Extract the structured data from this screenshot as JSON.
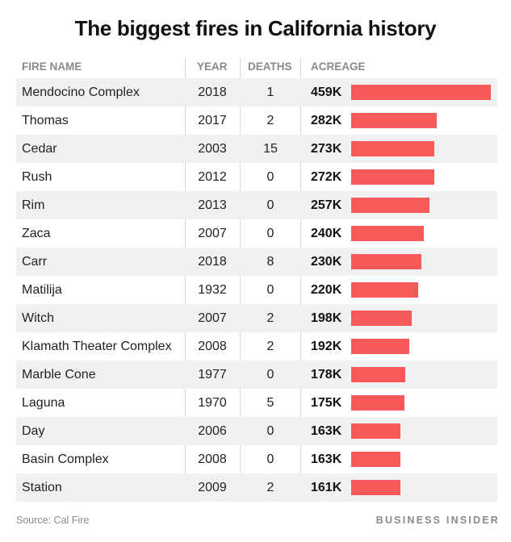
{
  "header": {
    "title": "The biggest fires in California history",
    "col_name": "FIRE NAME",
    "col_year": "YEAR",
    "col_deaths": "DEATHS",
    "col_acreage": "ACREAGE"
  },
  "footer": {
    "source": "Source: Cal Fire",
    "brand": "BUSINESS INSIDER"
  },
  "chart_data": {
    "type": "table",
    "title": "The biggest fires in California history",
    "columns": [
      "FIRE NAME",
      "YEAR",
      "DEATHS",
      "ACREAGE"
    ],
    "bar_color": "#f65a5a",
    "bar_max_value": 459,
    "rows": [
      {
        "name": "Mendocino Complex",
        "year": "2018",
        "deaths": "1",
        "acreage_label": "459K",
        "acreage": 459
      },
      {
        "name": "Thomas",
        "year": "2017",
        "deaths": "2",
        "acreage_label": "282K",
        "acreage": 282
      },
      {
        "name": "Cedar",
        "year": "2003",
        "deaths": "15",
        "acreage_label": "273K",
        "acreage": 273
      },
      {
        "name": "Rush",
        "year": "2012",
        "deaths": "0",
        "acreage_label": "272K",
        "acreage": 272
      },
      {
        "name": "Rim",
        "year": "2013",
        "deaths": "0",
        "acreage_label": "257K",
        "acreage": 257
      },
      {
        "name": "Zaca",
        "year": "2007",
        "deaths": "0",
        "acreage_label": "240K",
        "acreage": 240
      },
      {
        "name": "Carr",
        "year": "2018",
        "deaths": "8",
        "acreage_label": "230K",
        "acreage": 230
      },
      {
        "name": "Matilija",
        "year": "1932",
        "deaths": "0",
        "acreage_label": "220K",
        "acreage": 220
      },
      {
        "name": "Witch",
        "year": "2007",
        "deaths": "2",
        "acreage_label": "198K",
        "acreage": 198
      },
      {
        "name": "Klamath Theater Complex",
        "year": "2008",
        "deaths": "2",
        "acreage_label": "192K",
        "acreage": 192
      },
      {
        "name": "Marble Cone",
        "year": "1977",
        "deaths": "0",
        "acreage_label": "178K",
        "acreage": 178
      },
      {
        "name": "Laguna",
        "year": "1970",
        "deaths": "5",
        "acreage_label": "175K",
        "acreage": 175
      },
      {
        "name": "Day",
        "year": "2006",
        "deaths": "0",
        "acreage_label": "163K",
        "acreage": 163
      },
      {
        "name": "Basin Complex",
        "year": "2008",
        "deaths": "0",
        "acreage_label": "163K",
        "acreage": 163
      },
      {
        "name": "Station",
        "year": "2009",
        "deaths": "2",
        "acreage_label": "161K",
        "acreage": 161
      }
    ]
  }
}
